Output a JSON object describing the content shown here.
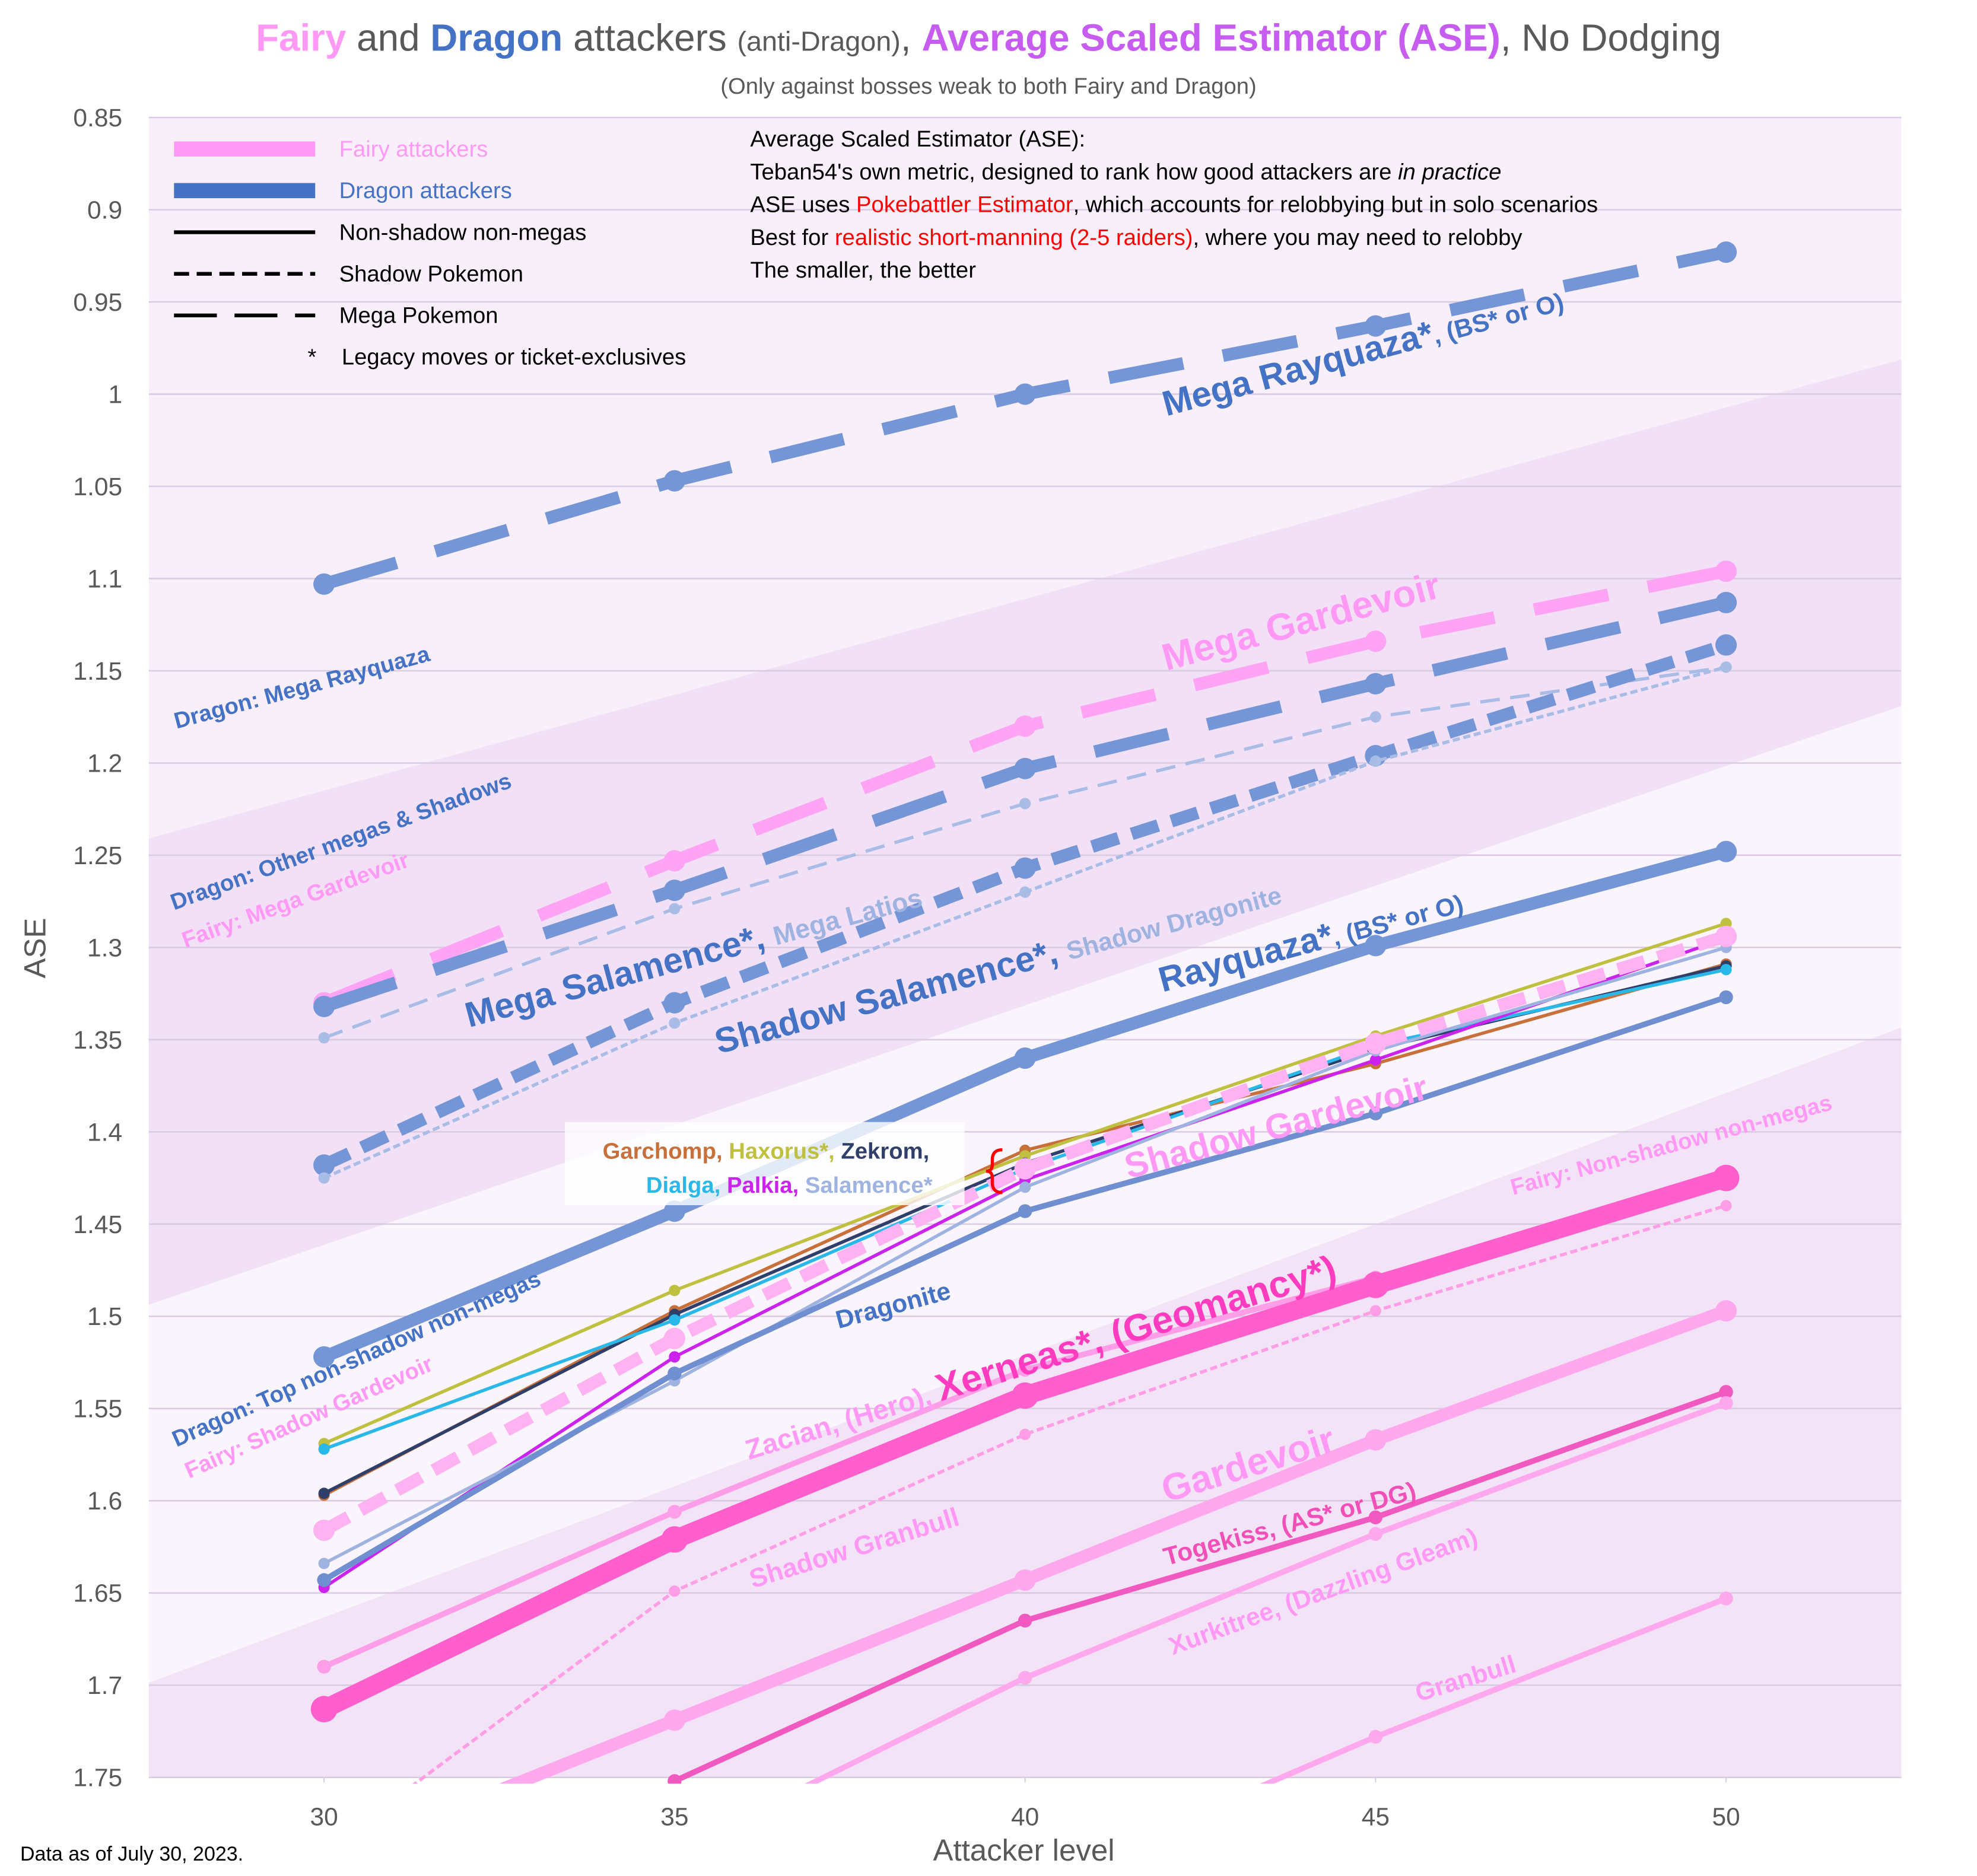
{
  "chart_data": {
    "type": "line",
    "title_parts": [
      {
        "text": "Fairy",
        "color": "#ff99f5",
        "bold": true
      },
      {
        "text": " and ",
        "color": "#595959"
      },
      {
        "text": "Dragon",
        "color": "#4472c4",
        "bold": true
      },
      {
        "text": " attackers ",
        "color": "#595959"
      },
      {
        "text": "(anti-Dragon)",
        "color": "#595959",
        "small": true
      },
      {
        "text": ", ",
        "color": "#595959"
      },
      {
        "text": "Average Scaled Estimator (ASE)",
        "color": "#c75cf0",
        "bold": true
      },
      {
        "text": ", No Dodging",
        "color": "#595959"
      }
    ],
    "subtitle": "(Only against bosses weak to both Fairy and Dragon)",
    "x_label": "Attacker level",
    "y_label": "ASE",
    "footnote": "Data as of July 30, 2023.",
    "x": [
      30,
      35,
      40,
      45,
      50
    ],
    "xlim": [
      27.5,
      52.5
    ],
    "xticks": [
      30,
      35,
      40,
      45,
      50
    ],
    "ylim": [
      0.85,
      1.75
    ],
    "y_inverted": true,
    "yticks": [
      0.85,
      0.9,
      0.95,
      1,
      1.05,
      1.1,
      1.15,
      1.2,
      1.25,
      1.3,
      1.35,
      1.4,
      1.45,
      1.5,
      1.55,
      1.6,
      1.65,
      1.7,
      1.75
    ],
    "grid": true,
    "separator": ", ",
    "legend": [
      {
        "label": "Fairy attackers",
        "color": "#ff99f5",
        "style": "solid",
        "line": "thick"
      },
      {
        "label": "Dragon attackers",
        "color": "#4472c4",
        "style": "solid",
        "line": "thick"
      },
      {
        "label": "Non-shadow non-megas",
        "color": "#000000",
        "style": "solid",
        "line": "thin"
      },
      {
        "label": "Shadow Pokemon",
        "color": "#000000",
        "style": "shadow",
        "line": "thin"
      },
      {
        "label": "Mega Pokemon",
        "color": "#000000",
        "style": "mega",
        "line": "thin"
      },
      {
        "symbol": "*",
        "label": "Legacy moves or ticket-exclusives"
      }
    ],
    "info": [
      [
        {
          "text": "Average Scaled Estimator (ASE):"
        }
      ],
      [
        {
          "text": "Teban54's own metric, designed to rank how good attackers are "
        },
        {
          "text": "in practice",
          "italic": true
        }
      ],
      [
        {
          "text": "ASE uses "
        },
        {
          "text": "Pokebattler Estimator",
          "color": "#ff0000"
        },
        {
          "text": ", which accounts for relobbying but in solo scenarios"
        }
      ],
      [
        {
          "text": "Best for "
        },
        {
          "text": "realistic short-manning (2-5 raiders)",
          "color": "#ff0000"
        },
        {
          "text": ", where you may need to relobby"
        }
      ],
      [
        {
          "text": "The smaller, the better"
        }
      ]
    ],
    "annotations": [
      {
        "text": "Dragon: Mega Rayquaza",
        "color": "#4472c4"
      },
      {
        "text": "Dragon: Other megas & Shadows",
        "color": "#4472c4"
      },
      {
        "text": "Fairy: Mega Gardevoir",
        "color": "#ff99f5"
      },
      {
        "text": "Dragon: Top non-shadow non-megas",
        "color": "#4472c4"
      },
      {
        "text": "Fairy: Shadow Gardevoir",
        "color": "#ff99f5"
      },
      {
        "text": "Fairy: Non-shadow non-megas",
        "color": "#ff99f5"
      }
    ],
    "series": [
      {
        "name": "Mega Rayquaza*",
        "note": "(BS* or O)",
        "color": "#7596d6",
        "label_color": "#4472c4",
        "style": "mega",
        "line": "thick",
        "values": [
          1.103,
          1.047,
          1.0,
          0.963,
          0.923
        ]
      },
      {
        "name": "Mega Gardevoir",
        "color": "#ffa3f5",
        "label_color": "#ff99f5",
        "style": "mega",
        "line": "thick",
        "values": [
          1.33,
          1.253,
          1.18,
          1.134,
          1.096
        ]
      },
      {
        "name": "Mega Salamence*",
        "color": "#7596d6",
        "label_color": "#4472c4",
        "style": "mega",
        "line": "thick",
        "values": [
          1.332,
          1.269,
          1.203,
          1.157,
          1.113
        ]
      },
      {
        "name": "Mega Latios",
        "color": "#a9bce6",
        "label_color": "#9fb3e0",
        "style": "mega",
        "line": "thin",
        "values": [
          1.349,
          1.279,
          1.222,
          1.175,
          1.148
        ]
      },
      {
        "name": "Shadow Salamence*",
        "color": "#7596d6",
        "label_color": "#4472c4",
        "style": "shadow",
        "line": "thick",
        "values": [
          1.418,
          1.33,
          1.257,
          1.196,
          1.136
        ]
      },
      {
        "name": "Shadow Dragonite",
        "color": "#a9bce6",
        "label_color": "#9fb3e0",
        "style": "shadow",
        "line": "thin",
        "values": [
          1.425,
          1.341,
          1.27,
          1.199,
          1.148
        ]
      },
      {
        "name": "Rayquaza*",
        "note": "(BS* or O)",
        "color": "#7596d6",
        "label_color": "#4472c4",
        "style": "solid",
        "line": "thick",
        "values": [
          1.522,
          1.443,
          1.36,
          1.299,
          1.248
        ]
      },
      {
        "name": "Garchomp",
        "color": "#c8703a",
        "style": "solid",
        "line": "thin",
        "values": [
          1.597,
          1.497,
          1.41,
          1.363,
          1.309
        ]
      },
      {
        "name": "Haxorus*",
        "color": "#c0c040",
        "style": "solid",
        "line": "thin",
        "values": [
          1.569,
          1.486,
          1.413,
          1.348,
          1.287
        ]
      },
      {
        "name": "Zekrom",
        "color": "#2f3f6a",
        "style": "solid",
        "line": "thin",
        "values": [
          1.596,
          1.499,
          1.417,
          1.355,
          1.31
        ]
      },
      {
        "name": "Dialga",
        "color": "#2ab8e8",
        "style": "solid",
        "line": "thin",
        "values": [
          1.572,
          1.502,
          1.42,
          1.353,
          1.312
        ]
      },
      {
        "name": "Palkia",
        "color": "#cc22ee",
        "style": "solid",
        "line": "thin",
        "values": [
          1.647,
          1.522,
          1.426,
          1.361,
          1.295
        ]
      },
      {
        "name": "Salamence*",
        "color": "#9fb3e0",
        "style": "solid",
        "line": "thin",
        "values": [
          1.634,
          1.535,
          1.43,
          1.356,
          1.3
        ]
      },
      {
        "name": "Dragonite",
        "color": "#6f8fd1",
        "label_color": "#4472c4",
        "style": "solid",
        "line": "medium",
        "values": [
          1.643,
          1.531,
          1.443,
          1.39,
          1.327
        ]
      },
      {
        "name": "Shadow Gardevoir",
        "color": "#ffb2f2",
        "label_color": "#ff99f5",
        "style": "shadow",
        "line": "thick",
        "values": [
          1.616,
          1.512,
          1.42,
          1.352,
          1.294
        ]
      },
      {
        "name": "Zacian",
        "note": "(Hero)",
        "color": "#ff9ee8",
        "label_color": "#ff99f5",
        "style": "solid",
        "line": "medium",
        "values": [
          1.69,
          1.606,
          1.529,
          1.479,
          1.424
        ]
      },
      {
        "name": "Xerneas*",
        "note": "(Geomancy*)",
        "color": "#ff5fcc",
        "label_color": "#ff3cbf",
        "style": "solid",
        "line": "heavy",
        "values": [
          1.713,
          1.621,
          1.543,
          1.483,
          1.425
        ]
      },
      {
        "name": "Shadow Granbull",
        "color": "#ff9ee6",
        "label_color": "#ff99f5",
        "style": "shadow",
        "line": "thin",
        "values": [
          1.79,
          1.649,
          1.564,
          1.497,
          1.44
        ]
      },
      {
        "name": "Gardevoir",
        "color": "#ffa8ee",
        "label_color": "#ff99f5",
        "style": "solid",
        "line": "thick",
        "values": [
          1.795,
          1.719,
          1.643,
          1.567,
          1.497
        ]
      },
      {
        "name": "Togekiss",
        "note": "(AS* or DG)",
        "color": "#f05ac0",
        "label_color": "#f050b8",
        "style": "solid",
        "line": "medium",
        "values": [
          null,
          1.752,
          1.665,
          1.609,
          1.541
        ]
      },
      {
        "name": "Xurkitree",
        "note": "(Dazzling Gleam)",
        "color": "#ffa8ee",
        "label_color": "#ff99f5",
        "style": "solid",
        "line": "medium",
        "values": [
          null,
          1.79,
          1.696,
          1.618,
          1.547
        ]
      },
      {
        "name": "Granbull",
        "color": "#ffa8ee",
        "label_color": "#ff99f5",
        "style": "solid",
        "line": "medium",
        "values": [
          null,
          null,
          1.81,
          1.728,
          1.653
        ]
      }
    ]
  }
}
